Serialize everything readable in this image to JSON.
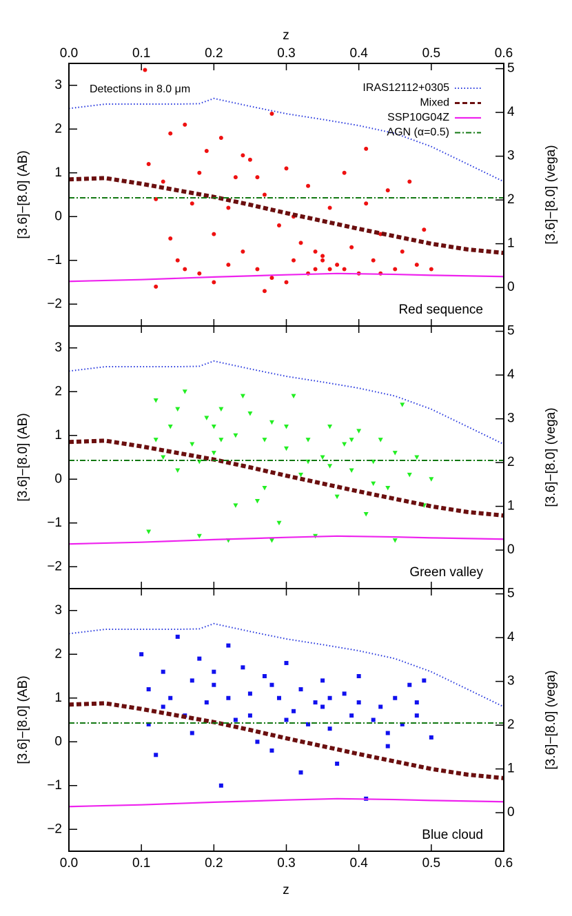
{
  "chart_data": {
    "type": "scatter",
    "xlabel": "z",
    "ylabel": "[3.6]−[8.0] (AB)",
    "y2label": "[3.6]−[8.0] (vega)",
    "annotation": "Detections in 8.0 μm",
    "xlim": [
      0,
      0.6
    ],
    "xticks": [
      {
        "value": 0,
        "label": "0.0"
      },
      0.1,
      0.2,
      0.3,
      0.4,
      0.5,
      0.6
    ],
    "ylim": [
      -2.5,
      3.5
    ],
    "yticks": [
      {
        "value": -2,
        "label": "−2"
      },
      {
        "value": -1,
        "label": "−1"
      },
      0,
      1,
      2,
      3
    ],
    "y2lim": [
      -0.88,
      5.12
    ],
    "y2ticks": [
      0,
      1,
      2,
      3,
      4,
      5
    ],
    "legend": "upper right",
    "lines": [
      {
        "name": "IRAS12112+0305",
        "color": "#2233dd",
        "style": "dotted",
        "x": [
          0,
          0.05,
          0.1,
          0.15,
          0.18,
          0.2,
          0.25,
          0.3,
          0.35,
          0.4,
          0.45,
          0.5,
          0.55,
          0.6
        ],
        "values": [
          2.47,
          2.57,
          2.57,
          2.57,
          2.58,
          2.7,
          2.52,
          2.35,
          2.22,
          2.08,
          1.9,
          1.6,
          1.2,
          0.8
        ]
      },
      {
        "name": "Mixed",
        "color": "#6b0f0f",
        "style": "dashed",
        "x": [
          0,
          0.05,
          0.1,
          0.15,
          0.2,
          0.25,
          0.3,
          0.35,
          0.4,
          0.45,
          0.5,
          0.55,
          0.6
        ],
        "values": [
          0.85,
          0.88,
          0.75,
          0.6,
          0.45,
          0.27,
          0.08,
          -0.1,
          -0.28,
          -0.45,
          -0.62,
          -0.75,
          -0.83
        ]
      },
      {
        "name": "SSP10G04Z",
        "color": "#ee22ee",
        "style": "solid",
        "x": [
          0,
          0.1,
          0.2,
          0.3,
          0.37,
          0.45,
          0.5,
          0.6
        ],
        "values": [
          -1.48,
          -1.44,
          -1.38,
          -1.33,
          -1.3,
          -1.32,
          -1.34,
          -1.37
        ]
      },
      {
        "name": "AGN (α=0.5)",
        "color": "#117711",
        "style": "dashdot",
        "x": [
          0,
          0.6
        ],
        "values": [
          0.43,
          0.43
        ]
      }
    ],
    "panels": [
      {
        "name": "Red sequence",
        "color": "#ee1111",
        "marker": "circle",
        "x": [
          0.105,
          0.28,
          0.41,
          0.11,
          0.12,
          0.13,
          0.14,
          0.15,
          0.16,
          0.17,
          0.18,
          0.19,
          0.2,
          0.21,
          0.22,
          0.23,
          0.24,
          0.25,
          0.26,
          0.27,
          0.28,
          0.29,
          0.3,
          0.31,
          0.32,
          0.33,
          0.34,
          0.35,
          0.36,
          0.37,
          0.38,
          0.39,
          0.4,
          0.41,
          0.42,
          0.43,
          0.44,
          0.45,
          0.46,
          0.47,
          0.48,
          0.49,
          0.5,
          0.12,
          0.14,
          0.18,
          0.22,
          0.26,
          0.3,
          0.33,
          0.35,
          0.36,
          0.34,
          0.38,
          0.27,
          0.2,
          0.24,
          0.16,
          0.43,
          0.31
        ],
        "values": [
          3.35,
          2.35,
          1.55,
          1.2,
          -1.6,
          0.8,
          1.9,
          -1.0,
          2.1,
          0.3,
          -1.3,
          1.5,
          -0.4,
          1.8,
          -1.1,
          0.9,
          -0.8,
          1.3,
          -1.2,
          0.5,
          -1.4,
          -0.2,
          1.1,
          -1.0,
          -0.6,
          0.7,
          -1.2,
          -0.9,
          0.2,
          -1.1,
          1.0,
          -0.7,
          -1.3,
          0.3,
          -1.0,
          -0.4,
          0.6,
          -1.2,
          -0.8,
          0.8,
          -1.1,
          -0.3,
          -1.2,
          0.4,
          -0.5,
          1.0,
          0.2,
          0.9,
          -1.5,
          -1.3,
          -1.0,
          -1.2,
          -0.8,
          -1.2,
          -1.7,
          -1.5,
          1.4,
          -1.2,
          -1.3,
          0.0
        ]
      },
      {
        "name": "Green valley",
        "color": "#22ee22",
        "marker": "triangle-down",
        "x": [
          0.11,
          0.12,
          0.13,
          0.14,
          0.15,
          0.16,
          0.17,
          0.18,
          0.19,
          0.2,
          0.21,
          0.22,
          0.23,
          0.24,
          0.25,
          0.26,
          0.27,
          0.28,
          0.29,
          0.3,
          0.31,
          0.32,
          0.33,
          0.34,
          0.35,
          0.36,
          0.37,
          0.38,
          0.39,
          0.4,
          0.41,
          0.42,
          0.43,
          0.44,
          0.45,
          0.46,
          0.47,
          0.48,
          0.49,
          0.5,
          0.12,
          0.15,
          0.18,
          0.21,
          0.24,
          0.27,
          0.3,
          0.33,
          0.36,
          0.39,
          0.42,
          0.45,
          0.28,
          0.2,
          0.23
        ],
        "values": [
          -1.2,
          1.8,
          0.5,
          1.2,
          0.2,
          2.0,
          0.8,
          -1.3,
          1.4,
          0.6,
          1.6,
          -1.4,
          1.0,
          0.3,
          1.5,
          -0.5,
          0.9,
          1.3,
          -1.0,
          0.7,
          1.9,
          0.1,
          0.9,
          -1.3,
          0.5,
          1.2,
          -0.4,
          0.8,
          0.2,
          1.1,
          -0.8,
          0.4,
          0.9,
          -0.2,
          0.6,
          1.7,
          0.1,
          0.5,
          -0.6,
          0.0,
          0.9,
          1.6,
          0.4,
          0.9,
          1.9,
          -0.2,
          1.2,
          0.4,
          0.3,
          0.9,
          -0.1,
          -1.4,
          -1.4,
          1.2,
          -0.6
        ]
      },
      {
        "name": "Blue cloud",
        "color": "#1111ee",
        "marker": "square",
        "x": [
          0.1,
          0.11,
          0.12,
          0.13,
          0.14,
          0.15,
          0.16,
          0.17,
          0.18,
          0.19,
          0.2,
          0.21,
          0.22,
          0.23,
          0.24,
          0.25,
          0.26,
          0.27,
          0.28,
          0.29,
          0.3,
          0.31,
          0.32,
          0.33,
          0.34,
          0.35,
          0.36,
          0.37,
          0.38,
          0.39,
          0.4,
          0.41,
          0.42,
          0.43,
          0.44,
          0.45,
          0.46,
          0.47,
          0.48,
          0.49,
          0.5,
          0.11,
          0.13,
          0.17,
          0.2,
          0.22,
          0.25,
          0.28,
          0.32,
          0.36,
          0.4,
          0.44,
          0.48,
          0.3,
          0.35
        ],
        "values": [
          2.0,
          0.4,
          -0.3,
          1.6,
          1.0,
          2.4,
          0.6,
          1.4,
          1.9,
          0.9,
          1.3,
          -1.0,
          2.2,
          0.5,
          1.7,
          1.1,
          0.0,
          1.5,
          -0.2,
          1.0,
          1.8,
          0.7,
          1.2,
          0.4,
          0.9,
          1.4,
          0.3,
          -0.5,
          1.1,
          0.6,
          0.9,
          -1.3,
          0.5,
          0.8,
          0.2,
          1.0,
          0.4,
          1.3,
          0.6,
          1.4,
          0.1,
          1.2,
          0.8,
          0.2,
          1.6,
          1.0,
          0.6,
          1.3,
          -0.7,
          1.0,
          1.5,
          -0.1,
          0.9,
          0.5,
          0.8
        ]
      }
    ]
  }
}
